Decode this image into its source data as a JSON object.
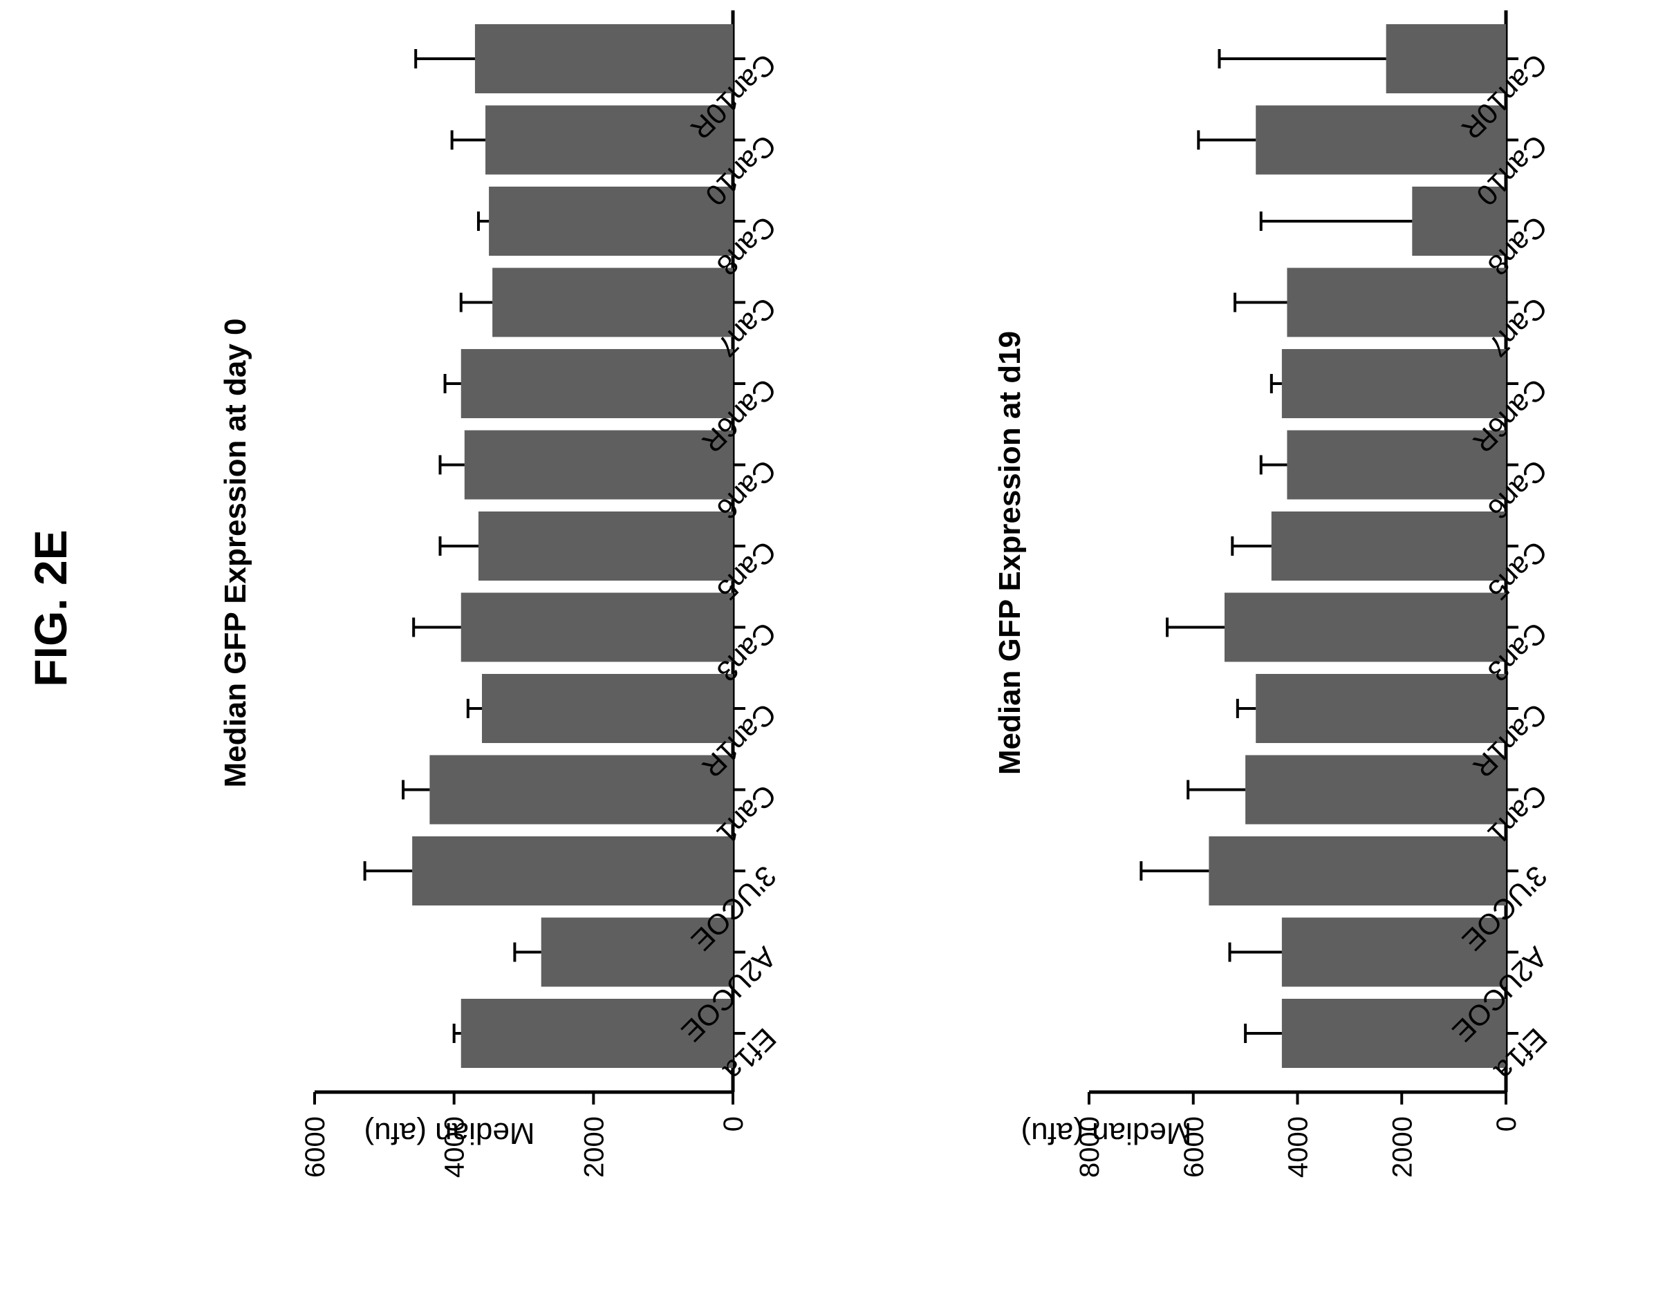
{
  "figure_label": "FIG. 2E",
  "chart_data": [
    {
      "type": "bar",
      "title": "Median GFP Expression at day 0",
      "xlabel": "",
      "ylabel": "Median (afu)",
      "ylim": [
        0,
        6000
      ],
      "yticks": [
        0,
        2000,
        4000,
        6000
      ],
      "orientation": "rotated 90° clockwise",
      "categories": [
        "Ef1a",
        "A2UCOE",
        "3'UCOE",
        "Can1",
        "Can1R",
        "Can3",
        "Can5",
        "Can6",
        "Can6R",
        "Can7",
        "Can8",
        "Can10",
        "Can10R"
      ],
      "values": [
        3900,
        2750,
        4600,
        4350,
        3600,
        3900,
        3650,
        3850,
        3900,
        3450,
        3500,
        3550,
        3700
      ],
      "errors": [
        100,
        380,
        680,
        380,
        200,
        680,
        550,
        350,
        230,
        450,
        150,
        480,
        850
      ],
      "bar_color": "#5f5f5f",
      "grid": false
    },
    {
      "type": "bar",
      "title": "Median GFP Expression at d19",
      "xlabel": "",
      "ylabel": "Median (afu)",
      "ylim": [
        0,
        8000
      ],
      "yticks": [
        0,
        2000,
        4000,
        6000,
        8000
      ],
      "orientation": "rotated 90° clockwise",
      "categories": [
        "Ef1a",
        "A2UCOE",
        "3'UCOE",
        "Can1",
        "Can1R",
        "Can3",
        "Can5",
        "Can6",
        "Can6R",
        "Can7",
        "Can8",
        "Can10",
        "Can10R"
      ],
      "values": [
        4300,
        4300,
        5700,
        5000,
        4800,
        5400,
        4500,
        4200,
        4300,
        4200,
        1800,
        4800,
        2300
      ],
      "errors": [
        700,
        1000,
        1300,
        1100,
        350,
        1100,
        750,
        500,
        200,
        1000,
        2900,
        1100,
        3200
      ],
      "bar_color": "#5f5f5f",
      "grid": false
    }
  ]
}
